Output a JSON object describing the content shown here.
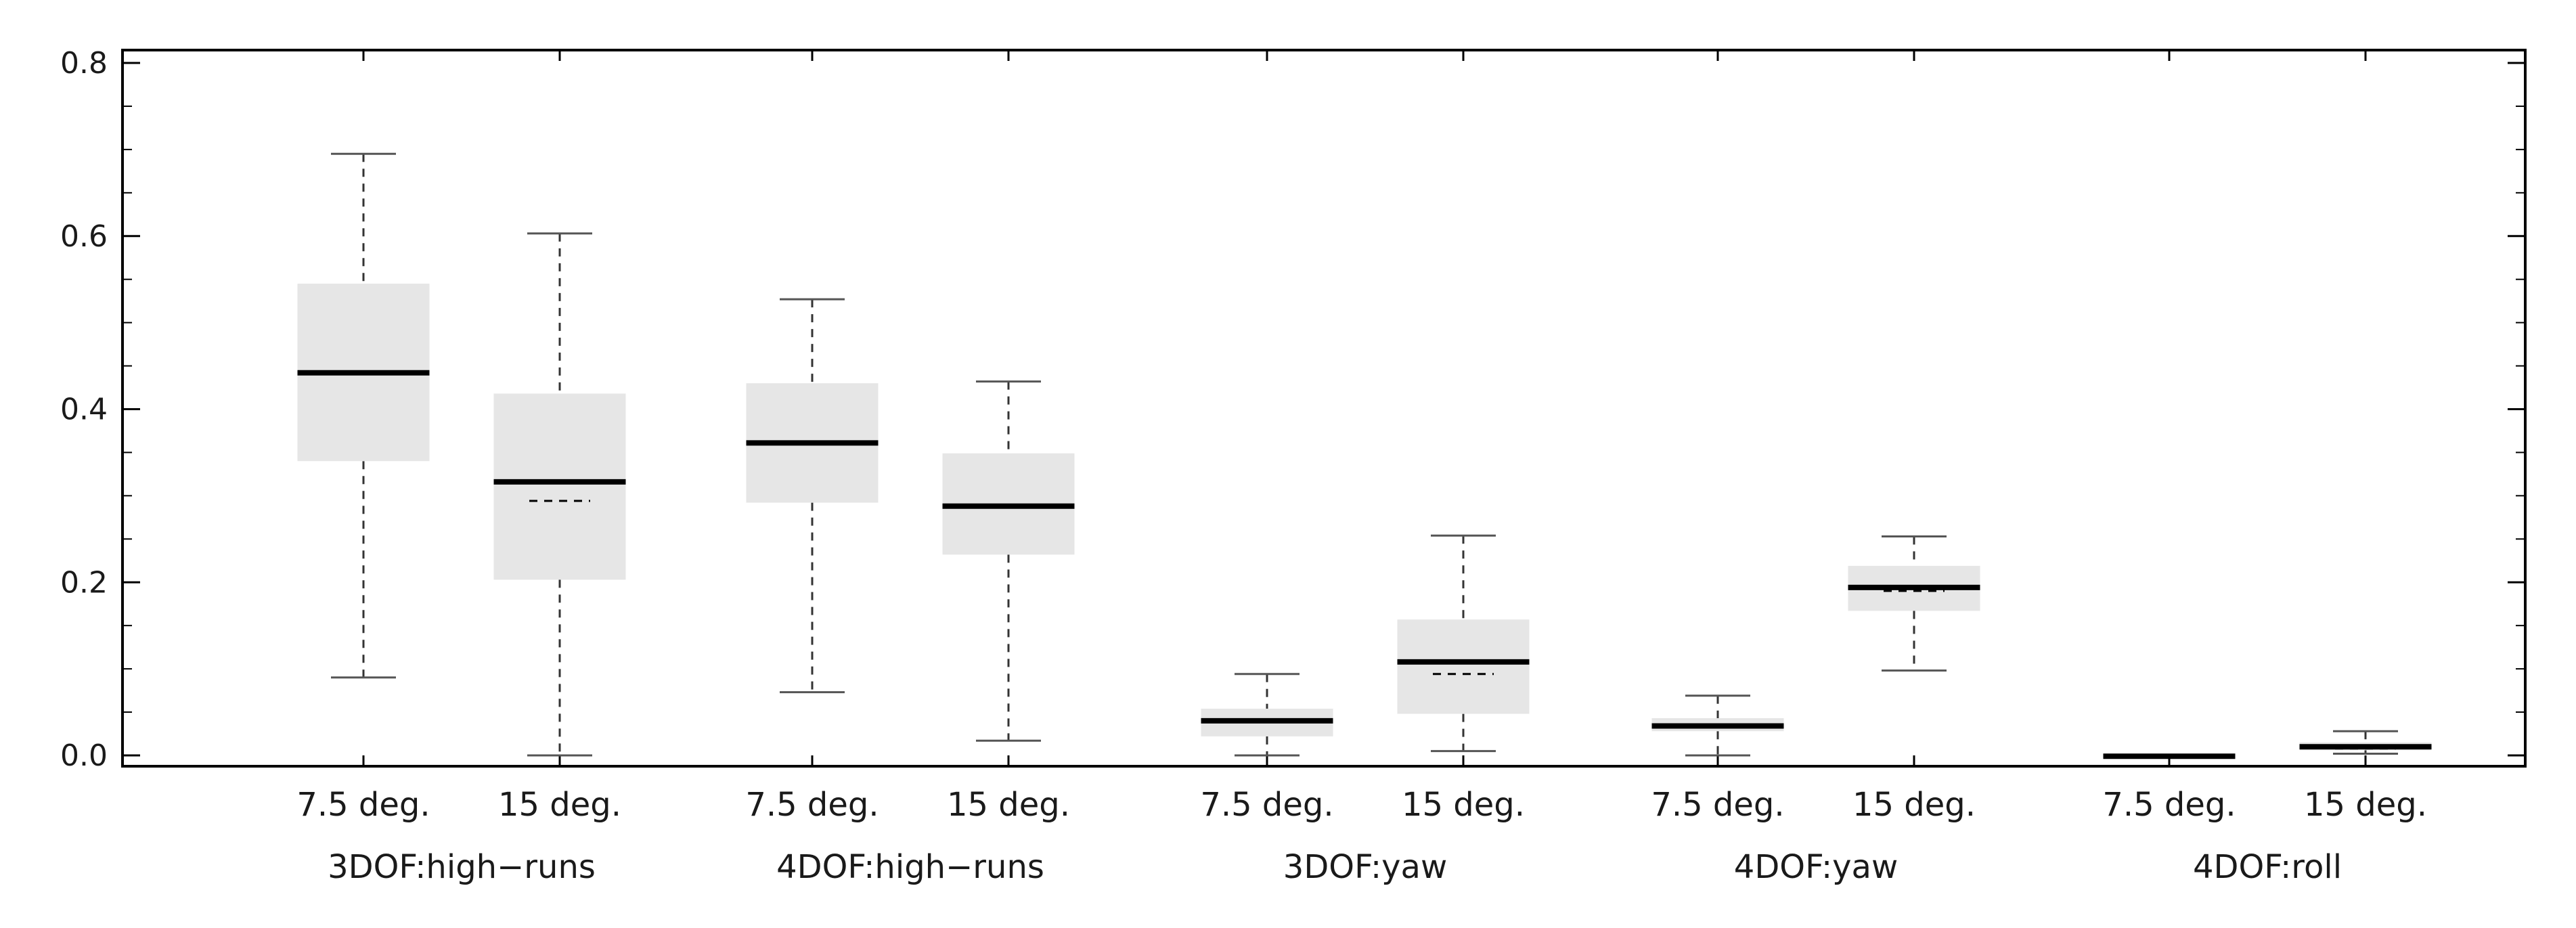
{
  "chart_data": {
    "type": "box",
    "ylim": [
      -0.015,
      0.81
    ],
    "yticks": [
      0.0,
      0.2,
      0.4,
      0.6,
      0.8
    ],
    "ytick_labels": [
      "0.0",
      "0.2",
      "0.4",
      "0.6",
      "0.8"
    ],
    "grid": false,
    "colors": {
      "box_fill": "#e6e6e6",
      "median": "#000000",
      "whisker": "#333333",
      "frame": "#000000"
    },
    "groups": [
      {
        "label": "3DOF:high−runs",
        "boxes": [
          {
            "label": "7.5 deg.",
            "min": 0.09,
            "q1": 0.34,
            "median": 0.442,
            "mean": 0.442,
            "q3": 0.545,
            "max": 0.695
          },
          {
            "label": "15 deg.",
            "min": 0.0,
            "q1": 0.203,
            "median": 0.316,
            "mean": 0.294,
            "q3": 0.418,
            "max": 0.603
          }
        ]
      },
      {
        "label": "4DOF:high−runs",
        "boxes": [
          {
            "label": "7.5 deg.",
            "min": 0.073,
            "q1": 0.292,
            "median": 0.361,
            "mean": 0.361,
            "q3": 0.43,
            "max": 0.527
          },
          {
            "label": "15 deg.",
            "min": 0.017,
            "q1": 0.232,
            "median": 0.288,
            "mean": 0.288,
            "q3": 0.349,
            "max": 0.432
          }
        ]
      },
      {
        "label": "3DOF:yaw",
        "boxes": [
          {
            "label": "7.5 deg.",
            "min": 0.0,
            "q1": 0.022,
            "median": 0.04,
            "mean": 0.04,
            "q3": 0.054,
            "max": 0.094
          },
          {
            "label": "15 deg.",
            "min": 0.005,
            "q1": 0.048,
            "median": 0.108,
            "mean": 0.094,
            "q3": 0.157,
            "max": 0.254
          }
        ]
      },
      {
        "label": "4DOF:yaw",
        "boxes": [
          {
            "label": "7.5 deg.",
            "min": 0.0,
            "q1": 0.028,
            "median": 0.034,
            "mean": 0.034,
            "q3": 0.043,
            "max": 0.069
          },
          {
            "label": "15 deg.",
            "min": 0.098,
            "q1": 0.167,
            "median": 0.194,
            "mean": 0.19,
            "q3": 0.219,
            "max": 0.253
          }
        ]
      },
      {
        "label": "4DOF:roll",
        "boxes": [
          {
            "label": "7.5 deg.",
            "min": -0.002,
            "q1": -0.002,
            "median": -0.001,
            "mean": -0.001,
            "q3": 0.0,
            "max": 0.0
          },
          {
            "label": "15 deg.",
            "min": 0.002,
            "q1": 0.006,
            "median": 0.01,
            "mean": 0.008,
            "q3": 0.015,
            "max": 0.028
          }
        ]
      }
    ]
  }
}
